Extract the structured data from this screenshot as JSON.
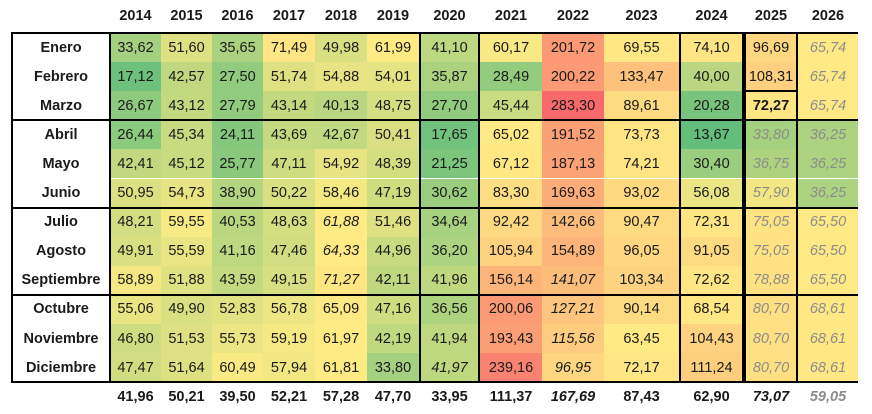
{
  "chart_data": {
    "type": "heatmap",
    "columns": [
      "2014",
      "2015",
      "2016",
      "2017",
      "2018",
      "2019",
      "2020",
      "2021",
      "2022",
      "2023",
      "2024",
      "2025",
      "2026"
    ],
    "rows": [
      {
        "label": "Enero",
        "bold": false,
        "values": [
          "33,62",
          "51,60",
          "35,65",
          "71,49",
          "49,98",
          "61,99",
          "41,10",
          "60,17",
          "201,72",
          "69,55",
          "74,10",
          "96,69",
          "65,74"
        ],
        "italic": [
          12
        ],
        "gray": [
          12
        ],
        "boldcells": []
      },
      {
        "label": "Febrero",
        "bold": false,
        "values": [
          "17,12",
          "42,57",
          "27,50",
          "51,74",
          "54,88",
          "54,01",
          "35,87",
          "28,49",
          "200,22",
          "133,47",
          "40,00",
          "108,31",
          "65,74"
        ],
        "italic": [
          12
        ],
        "gray": [
          12
        ],
        "boldcells": []
      },
      {
        "label": "Marzo",
        "bold": true,
        "values": [
          "26,67",
          "43,12",
          "27,79",
          "43,14",
          "40,13",
          "48,75",
          "27,70",
          "45,44",
          "283,30",
          "89,61",
          "20,28",
          "72,27",
          "65,74"
        ],
        "italic": [
          12
        ],
        "gray": [
          12
        ],
        "boldcells": [
          11
        ]
      },
      {
        "label": "Abril",
        "bold": false,
        "values": [
          "26,44",
          "45,34",
          "24,11",
          "43,69",
          "42,67",
          "50,41",
          "17,65",
          "65,02",
          "191,52",
          "73,73",
          "13,67",
          "33,80",
          "36,25"
        ],
        "italic": [
          11,
          12
        ],
        "gray": [
          11,
          12
        ],
        "boldcells": []
      },
      {
        "label": "Mayo",
        "bold": false,
        "values": [
          "42,41",
          "45,12",
          "25,77",
          "47,11",
          "54,92",
          "48,39",
          "21,25",
          "67,12",
          "187,13",
          "74,21",
          "30,40",
          "36,75",
          "36,25"
        ],
        "italic": [
          11,
          12
        ],
        "gray": [
          11,
          12
        ],
        "boldcells": []
      },
      {
        "label": "Junio",
        "bold": false,
        "values": [
          "50,95",
          "54,73",
          "38,90",
          "50,22",
          "58,46",
          "47,19",
          "30,62",
          "83,30",
          "169,63",
          "93,02",
          "56,08",
          "57,90",
          "36,25"
        ],
        "italic": [
          11,
          12
        ],
        "gray": [
          11,
          12
        ],
        "boldcells": []
      },
      {
        "label": "Julio",
        "bold": false,
        "values": [
          "48,21",
          "59,55",
          "40,53",
          "48,63",
          "61,88",
          "51,46",
          "34,64",
          "92,42",
          "142,66",
          "90,47",
          "72,31",
          "75,05",
          "65,50"
        ],
        "italic": [
          4,
          11,
          12
        ],
        "gray": [
          11,
          12
        ],
        "boldcells": []
      },
      {
        "label": "Agosto",
        "bold": false,
        "values": [
          "49,91",
          "55,59",
          "41,16",
          "47,46",
          "64,33",
          "44,96",
          "36,20",
          "105,94",
          "154,89",
          "96,05",
          "91,05",
          "75,05",
          "65,50"
        ],
        "italic": [
          4,
          11,
          12
        ],
        "gray": [
          11,
          12
        ],
        "boldcells": []
      },
      {
        "label": "Septiembre",
        "bold": false,
        "values": [
          "58,89",
          "51,88",
          "43,59",
          "49,15",
          "71,27",
          "42,11",
          "41,96",
          "156,14",
          "141,07",
          "103,34",
          "72,62",
          "78,88",
          "65,50"
        ],
        "italic": [
          4,
          8,
          11,
          12
        ],
        "gray": [
          11,
          12
        ],
        "boldcells": []
      },
      {
        "label": "Octubre",
        "bold": false,
        "values": [
          "55,06",
          "49,90",
          "52,83",
          "56,78",
          "65,09",
          "47,16",
          "36,56",
          "200,06",
          "127,21",
          "90,14",
          "68,54",
          "80,70",
          "68,61"
        ],
        "italic": [
          8,
          11,
          12
        ],
        "gray": [
          11,
          12
        ],
        "boldcells": []
      },
      {
        "label": "Noviembre",
        "bold": false,
        "values": [
          "46,80",
          "51,53",
          "55,73",
          "59,19",
          "61,97",
          "42,19",
          "41,94",
          "193,43",
          "115,56",
          "63,45",
          "104,43",
          "80,70",
          "68,61"
        ],
        "italic": [
          8,
          11,
          12
        ],
        "gray": [
          11,
          12
        ],
        "boldcells": []
      },
      {
        "label": "Diciembre",
        "bold": false,
        "values": [
          "47,47",
          "51,64",
          "60,49",
          "57,94",
          "61,81",
          "33,80",
          "41,97",
          "239,16",
          "96,95",
          "72,17",
          "111,24",
          "80,70",
          "68,61"
        ],
        "italic": [
          6,
          8,
          11,
          12
        ],
        "gray": [
          11,
          12
        ],
        "boldcells": []
      }
    ],
    "totals": {
      "values": [
        "41,96",
        "50,21",
        "39,50",
        "52,21",
        "57,28",
        "47,70",
        "33,95",
        "111,37",
        "167,69",
        "87,43",
        "62,90",
        "73,07",
        "59,05"
      ],
      "italic": [
        8,
        11,
        12
      ],
      "gray": [
        12
      ]
    },
    "color_scale": {
      "min_color": "#63be7b",
      "mid_color": "#ffeb84",
      "max_color": "#f8696b",
      "min": 13.67,
      "mid": 62,
      "max": 283.3
    }
  }
}
